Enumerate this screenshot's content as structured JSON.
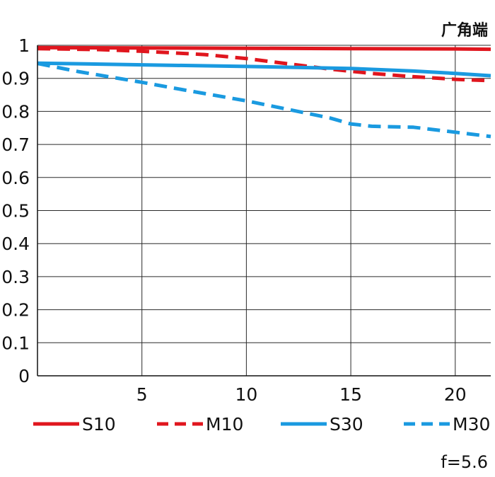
{
  "chart_data": {
    "type": "line",
    "title": "广角端",
    "footnote": "f=5.6",
    "xlim": [
      0,
      21.7
    ],
    "ylim": [
      0,
      1
    ],
    "x_ticks": [
      5,
      10,
      15,
      20
    ],
    "x_tick_labels": [
      "5",
      "10",
      "15",
      "20"
    ],
    "y_ticks": [
      0,
      0.1,
      0.2,
      0.3,
      0.4,
      0.5,
      0.6,
      0.7,
      0.8,
      0.9,
      1
    ],
    "y_tick_labels": [
      "0",
      "0.1",
      "0.2",
      "0.3",
      "0.4",
      "0.5",
      "0.6",
      "0.7",
      "0.8",
      "0.9",
      "1"
    ],
    "grid": true,
    "legend_position": "bottom",
    "series": [
      {
        "name": "S10",
        "color": "#e0161e",
        "style": "solid",
        "x": [
          0,
          5,
          10,
          15,
          20,
          21.7
        ],
        "y": [
          0.993,
          0.992,
          0.991,
          0.99,
          0.989,
          0.988
        ]
      },
      {
        "name": "M10",
        "color": "#e0161e",
        "style": "dashed",
        "x": [
          0,
          3,
          5,
          8,
          10,
          12,
          14,
          16,
          18,
          20,
          21.7
        ],
        "y": [
          0.99,
          0.987,
          0.982,
          0.972,
          0.96,
          0.944,
          0.928,
          0.915,
          0.905,
          0.897,
          0.893
        ]
      },
      {
        "name": "S30",
        "color": "#1a9ae0",
        "style": "solid",
        "x": [
          0,
          5,
          10,
          15,
          18,
          20,
          21.7
        ],
        "y": [
          0.946,
          0.941,
          0.936,
          0.93,
          0.922,
          0.915,
          0.908
        ]
      },
      {
        "name": "M30",
        "color": "#1a9ae0",
        "style": "dashed",
        "x": [
          0,
          2,
          5,
          7,
          10,
          12,
          14,
          15,
          16,
          18,
          20,
          21.7
        ],
        "y": [
          0.945,
          0.92,
          0.888,
          0.865,
          0.832,
          0.806,
          0.78,
          0.762,
          0.755,
          0.752,
          0.737,
          0.724
        ]
      }
    ]
  }
}
